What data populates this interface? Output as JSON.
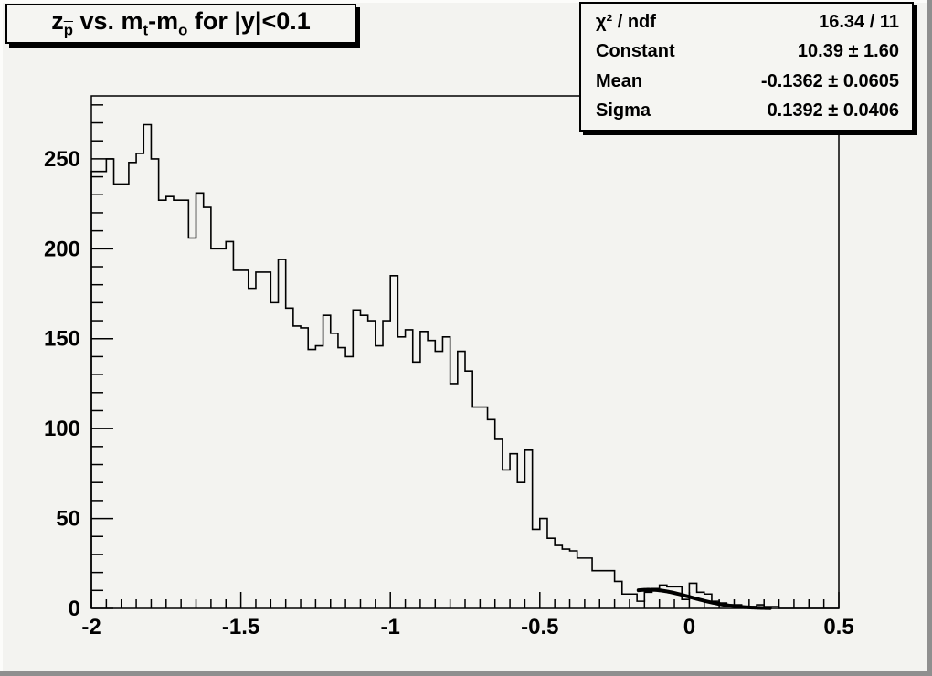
{
  "title": {
    "plain": "z_p(bar) vs. m_t-m_o for |y|<0.1",
    "segments": [
      {
        "text": "z",
        "style": "normal"
      },
      {
        "text": "p",
        "style": "sub-bar"
      },
      {
        "text": " vs. m",
        "style": "normal"
      },
      {
        "text": "t",
        "style": "sub"
      },
      {
        "text": "-m",
        "style": "normal"
      },
      {
        "text": "o",
        "style": "sub"
      },
      {
        "text": " for |y|<0.1",
        "style": "normal"
      }
    ]
  },
  "stats": {
    "rows": [
      {
        "label": "χ² / ndf",
        "value": "16.34 / 11"
      },
      {
        "label": "Constant",
        "value": "10.39 ± 1.60"
      },
      {
        "label": "Mean",
        "value": "-0.1362 ± 0.0605"
      },
      {
        "label": "Sigma",
        "value": "0.1392 ± 0.0406"
      }
    ]
  },
  "colors": {
    "canvas_bg": "#f3f3f0",
    "box_bg": "#f5f5f2",
    "line": "#000000",
    "bevel_light": "#fcfcfa",
    "bevel_dark": "#8f8f8f"
  },
  "chart_data": {
    "type": "bar",
    "style": "step-histogram",
    "title": "z_p(bar) vs. m_t-m_o for |y|<0.1",
    "xlabel": "",
    "ylabel": "",
    "xlim": [
      -2,
      0.5
    ],
    "ylim": [
      0,
      285
    ],
    "grid": false,
    "bin_start": -2.0,
    "bin_width": 0.025,
    "values": [
      243,
      243,
      250,
      236,
      236,
      248,
      253,
      269,
      250,
      227,
      229,
      227,
      227,
      206,
      231,
      223,
      200,
      200,
      204,
      188,
      188,
      178,
      187,
      187,
      170,
      194,
      167,
      157,
      156,
      144,
      146,
      163,
      153,
      145,
      140,
      166,
      163,
      160,
      146,
      160,
      185,
      151,
      155,
      137,
      154,
      149,
      143,
      151,
      125,
      143,
      132,
      112,
      112,
      105,
      94,
      77,
      86,
      70,
      88,
      44,
      50,
      39,
      35,
      33,
      32,
      28,
      28,
      21,
      21,
      21,
      15,
      8,
      8,
      4,
      9,
      11,
      13,
      12,
      12,
      5,
      14,
      9,
      8,
      4,
      3,
      2,
      2,
      1,
      1,
      2,
      1,
      1,
      0,
      0,
      0,
      0,
      0,
      0,
      0,
      0
    ],
    "x_major_ticks": [
      -2,
      -1.5,
      -1,
      -0.5,
      0,
      0.5
    ],
    "x_tick_labels": [
      "-2",
      "-1.5",
      "-1",
      "-0.5",
      "0",
      "0.5"
    ],
    "x_minor_step": 0.05,
    "y_major_ticks": [
      0,
      50,
      100,
      150,
      200,
      250
    ],
    "y_tick_labels": [
      "0",
      "50",
      "100",
      "150",
      "200",
      "250"
    ],
    "y_minor_step": 10,
    "fit": {
      "type": "gaussian",
      "constant": 10.39,
      "mean": -0.1362,
      "sigma": 0.1392,
      "draw_range": [
        -0.17,
        0.27
      ]
    },
    "legend": null
  }
}
